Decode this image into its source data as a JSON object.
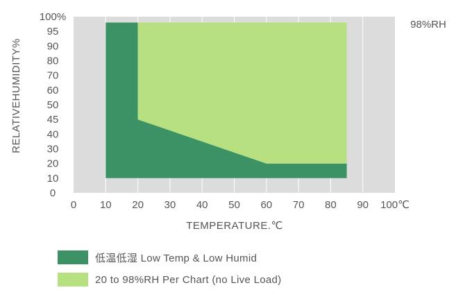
{
  "chart_data": {
    "type": "area",
    "xlabel": "TEMPERATURE.℃",
    "ylabel": "RELATIVEHUMIDITY%",
    "corner_label": "98%RH",
    "x_ticks": [
      "0",
      "10",
      "20",
      "30",
      "40",
      "50",
      "60",
      "70",
      "80",
      "90",
      "100℃"
    ],
    "y_ticks": [
      "0",
      "10",
      "20",
      "30",
      "40",
      "45",
      "50",
      "60",
      "70",
      "80",
      "90",
      "95",
      "100%"
    ],
    "xlim": [
      0,
      100
    ],
    "grid": true,
    "series": [
      {
        "name": "低温低湿  Low Temp & Low Humid",
        "color": "#3c9165",
        "polygon": [
          [
            10,
            10
          ],
          [
            10,
            98
          ],
          [
            20,
            98
          ],
          [
            20,
            45
          ],
          [
            60,
            20
          ],
          [
            85,
            20
          ],
          [
            85,
            10
          ]
        ]
      },
      {
        "name": "20 to 98%RH Per Chart (no Live Load)",
        "color": "#b7e081",
        "polygon": [
          [
            20,
            45
          ],
          [
            20,
            98
          ],
          [
            85,
            98
          ],
          [
            85,
            20
          ],
          [
            60,
            20
          ]
        ]
      }
    ]
  },
  "colors": {
    "plot_background": "#dcdcdc",
    "grid": "#ffffff",
    "low_temp_low_humid": "#3c9165",
    "per_chart": "#b7e081"
  }
}
